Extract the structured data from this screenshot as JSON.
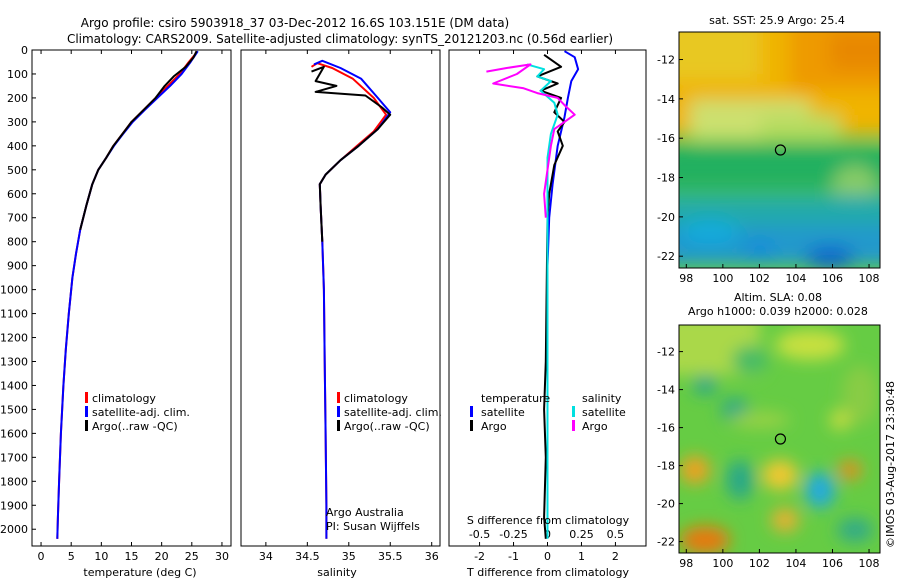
{
  "header": {
    "line1": "Argo profile: csiro 5903918_37 03-Dec-2012 16.6S 103.151E (DM data)",
    "line2": "Climatology: CARS2009. Satellite-adjusted climatology: synTS_20121203.nc (0.56d earlier)"
  },
  "colors": {
    "climatology": "#ff0000",
    "satellite": "#0000ff",
    "argo": "#000000",
    "argo_salinity": "#ff00ff",
    "sat_salinity": "#00e0e0"
  },
  "chart_data": [
    {
      "type": "line",
      "name": "temperature",
      "xlabel": "temperature (deg C)",
      "xlim": [
        -1.5,
        31.5
      ],
      "xticks": [
        0,
        5,
        10,
        15,
        20,
        25,
        30
      ],
      "ylabel": "depth",
      "ylim": [
        2070,
        0
      ],
      "yticks": [
        0,
        100,
        200,
        300,
        400,
        500,
        600,
        700,
        800,
        900,
        1000,
        1100,
        1200,
        1300,
        1400,
        1500,
        1600,
        1700,
        1800,
        1900,
        2000
      ],
      "legend": [
        "climatology",
        "satellite-adj. clim.",
        "Argo(..raw -QC)"
      ],
      "series": [
        {
          "name": "climatology",
          "color": "#ff0000",
          "points": [
            [
              25.8,
              5
            ],
            [
              25.5,
              20
            ],
            [
              24.5,
              50
            ],
            [
              23,
              100
            ],
            [
              21,
              150
            ],
            [
              19,
              200
            ],
            [
              17,
              250
            ],
            [
              15,
              300
            ],
            [
              13.5,
              350
            ],
            [
              12,
              400
            ],
            [
              10.8,
              450
            ],
            [
              9.5,
              500
            ],
            [
              8.5,
              560
            ],
            [
              7.5,
              650
            ],
            [
              6.5,
              750
            ],
            [
              5.8,
              850
            ],
            [
              5.2,
              950
            ],
            [
              4.6,
              1100
            ],
            [
              4.1,
              1250
            ],
            [
              3.7,
              1400
            ],
            [
              3.3,
              1600
            ],
            [
              3,
              1800
            ],
            [
              2.8,
              1950
            ],
            [
              2.7,
              2040
            ]
          ]
        },
        {
          "name": "satellite-adj. clim.",
          "color": "#0000ff",
          "points": [
            [
              26,
              5
            ],
            [
              25.6,
              20
            ],
            [
              24.8,
              50
            ],
            [
              23.3,
              100
            ],
            [
              21.4,
              150
            ],
            [
              19.3,
              200
            ],
            [
              17.2,
              250
            ],
            [
              15.2,
              300
            ],
            [
              13.6,
              350
            ],
            [
              12.1,
              400
            ],
            [
              10.8,
              450
            ],
            [
              9.5,
              500
            ],
            [
              8.5,
              560
            ],
            [
              7.5,
              650
            ],
            [
              6.5,
              750
            ],
            [
              5.8,
              850
            ],
            [
              5.2,
              950
            ],
            [
              4.6,
              1100
            ],
            [
              4.1,
              1250
            ],
            [
              3.7,
              1400
            ],
            [
              3.3,
              1600
            ],
            [
              3,
              1800
            ],
            [
              2.8,
              1950
            ],
            [
              2.7,
              2040
            ]
          ]
        },
        {
          "name": "Argo(..raw -QC)",
          "color": "#000000",
          "points": [
            [
              25.8,
              5
            ],
            [
              25.3,
              30
            ],
            [
              24,
              70
            ],
            [
              22,
              110
            ],
            [
              20.5,
              150
            ],
            [
              19,
              200
            ],
            [
              17,
              250
            ],
            [
              15,
              300
            ],
            [
              13.5,
              350
            ],
            [
              12,
              400
            ],
            [
              10.8,
              450
            ],
            [
              9.5,
              500
            ],
            [
              8.5,
              560
            ],
            [
              7.5,
              650
            ],
            [
              6.5,
              750
            ]
          ]
        }
      ]
    },
    {
      "type": "line",
      "name": "salinity",
      "xlabel": "salinity",
      "xlim": [
        33.7,
        36.1
      ],
      "xticks": [
        34,
        34.5,
        35,
        35.5,
        36
      ],
      "ylim": [
        2070,
        0
      ],
      "legend": [
        "climatology",
        "satellite-adj. clim.",
        "Argo(..raw -QC)"
      ],
      "series": [
        {
          "name": "climatology",
          "color": "#ff0000",
          "points": [
            [
              34.55,
              70
            ],
            [
              34.62,
              55
            ],
            [
              34.8,
              75
            ],
            [
              35.05,
              120
            ],
            [
              35.3,
              200
            ],
            [
              35.45,
              270
            ],
            [
              35.3,
              340
            ],
            [
              35.1,
              400
            ],
            [
              34.9,
              460
            ],
            [
              34.72,
              520
            ],
            [
              34.65,
              560
            ],
            [
              34.66,
              650
            ],
            [
              34.68,
              800
            ],
            [
              34.7,
              1000
            ],
            [
              34.71,
              1300
            ],
            [
              34.72,
              1600
            ],
            [
              34.73,
              1900
            ],
            [
              34.73,
              2040
            ]
          ]
        },
        {
          "name": "satellite-adj. clim.",
          "color": "#0000ff",
          "points": [
            [
              34.58,
              60
            ],
            [
              34.68,
              45
            ],
            [
              34.9,
              75
            ],
            [
              35.15,
              120
            ],
            [
              35.35,
              200
            ],
            [
              35.5,
              260
            ],
            [
              35.35,
              330
            ],
            [
              35.12,
              400
            ],
            [
              34.9,
              460
            ],
            [
              34.72,
              520
            ],
            [
              34.65,
              560
            ],
            [
              34.66,
              650
            ],
            [
              34.68,
              800
            ],
            [
              34.7,
              1000
            ],
            [
              34.71,
              1300
            ],
            [
              34.72,
              1600
            ],
            [
              34.73,
              1900
            ],
            [
              34.73,
              2040
            ]
          ]
        },
        {
          "name": "Argo(..raw -QC)",
          "color": "#000000",
          "points": [
            [
              34.55,
              90
            ],
            [
              34.7,
              70
            ],
            [
              34.6,
              130
            ],
            [
              34.85,
              150
            ],
            [
              34.6,
              175
            ],
            [
              35.2,
              190
            ],
            [
              35.4,
              240
            ],
            [
              35.5,
              270
            ],
            [
              35.35,
              330
            ],
            [
              35.12,
              400
            ],
            [
              34.9,
              460
            ],
            [
              34.72,
              520
            ],
            [
              34.65,
              560
            ],
            [
              34.66,
              650
            ],
            [
              34.68,
              800
            ]
          ]
        }
      ],
      "annotations": [
        "Argo Australia",
        "PI: Susan Wijffels"
      ]
    },
    {
      "type": "line",
      "name": "difference from climatology",
      "xlabel": "T difference from climatology",
      "xlabel2": "S difference from climatology",
      "xlim": [
        -2.9,
        2.9
      ],
      "xticks_T": [
        -2,
        -1,
        0,
        1,
        2
      ],
      "xticks_S_labels": [
        "-0.5",
        "-0.25",
        "0",
        "0.25",
        "0.5"
      ],
      "xticks_S_positions_T_units": [
        -2,
        -1,
        0,
        1,
        2
      ],
      "ylim": [
        2070,
        0
      ],
      "legend_temperature_title": "temperature",
      "legend_salinity_title": "salinity",
      "legend": [
        {
          "group": "temperature",
          "label": "satellite",
          "color": "#0000ff"
        },
        {
          "group": "temperature",
          "label": "Argo",
          "color": "#000000"
        },
        {
          "group": "salinity",
          "label": "satellite",
          "color": "#00e0e0"
        },
        {
          "group": "salinity",
          "label": "Argo",
          "color": "#ff00ff"
        }
      ],
      "series": [
        {
          "name": "temperature satellite",
          "color": "#0000ff",
          "points": [
            [
              0.5,
              5
            ],
            [
              0.8,
              30
            ],
            [
              0.9,
              80
            ],
            [
              0.7,
              130
            ],
            [
              0.6,
              200
            ],
            [
              0.5,
              280
            ],
            [
              0.3,
              400
            ],
            [
              0.15,
              560
            ],
            [
              0.05,
              700
            ],
            [
              0,
              900
            ]
          ]
        },
        {
          "name": "temperature Argo",
          "color": "#000000",
          "points": [
            [
              -0.1,
              20
            ],
            [
              0.4,
              70
            ],
            [
              -0.3,
              110
            ],
            [
              0.3,
              140
            ],
            [
              -0.2,
              170
            ],
            [
              0.4,
              200
            ],
            [
              0.2,
              260
            ],
            [
              0.5,
              300
            ],
            [
              0.3,
              340
            ],
            [
              0.45,
              400
            ],
            [
              0.2,
              480
            ],
            [
              0.05,
              600
            ],
            [
              0,
              700
            ],
            [
              -0.05,
              1300
            ],
            [
              -0.1,
              1500
            ],
            [
              -0.05,
              1700
            ],
            [
              -0.1,
              1950
            ],
            [
              -0.05,
              2040
            ]
          ]
        },
        {
          "name": "salinity satellite",
          "color": "#00e0e0",
          "points": [
            [
              -0.6,
              60
            ],
            [
              -0.1,
              80
            ],
            [
              -0.3,
              110
            ],
            [
              0.1,
              130
            ],
            [
              -0.2,
              170
            ],
            [
              0.2,
              220
            ],
            [
              0.3,
              270
            ],
            [
              0.1,
              350
            ],
            [
              0,
              450
            ],
            [
              0,
              700
            ],
            [
              0,
              1500
            ],
            [
              0,
              2040
            ]
          ]
        },
        {
          "name": "salinity Argo",
          "color": "#ff00ff",
          "points": [
            [
              -1.8,
              90
            ],
            [
              -1.2,
              75
            ],
            [
              -0.5,
              60
            ],
            [
              -0.9,
              100
            ],
            [
              -1.6,
              140
            ],
            [
              -0.7,
              160
            ],
            [
              -0.3,
              180
            ],
            [
              0.3,
              200
            ],
            [
              0.5,
              230
            ],
            [
              0.8,
              270
            ],
            [
              0.2,
              330
            ],
            [
              0.1,
              400
            ],
            [
              -0.1,
              600
            ],
            [
              -0.05,
              700
            ]
          ]
        }
      ]
    },
    {
      "type": "heatmap",
      "name": "sat. SST map",
      "title": "sat. SST: 25.9  Argo: 25.4",
      "xticks": [
        98,
        100,
        102,
        104,
        106,
        108
      ],
      "yticks": [
        -12,
        -14,
        -16,
        -18,
        -20,
        -22
      ],
      "xlim": [
        97.6,
        108.6
      ],
      "ylim": [
        -22.6,
        -10.6
      ],
      "marker": {
        "lon": 103.151,
        "lat": -16.6
      }
    },
    {
      "type": "heatmap",
      "name": "altimetry SLA map",
      "title": "Altim. SLA: 0.08",
      "subtitle": "Argo h1000: 0.039 h2000: 0.028",
      "xticks": [
        98,
        100,
        102,
        104,
        106,
        108
      ],
      "yticks": [
        -12,
        -14,
        -16,
        -18,
        -20,
        -22
      ],
      "xlim": [
        97.6,
        108.6
      ],
      "ylim": [
        -22.6,
        -10.6
      ],
      "marker": {
        "lon": 103.151,
        "lat": -16.6
      }
    }
  ],
  "side_text": "©IMOS 03-Aug-2017 23:30:48"
}
